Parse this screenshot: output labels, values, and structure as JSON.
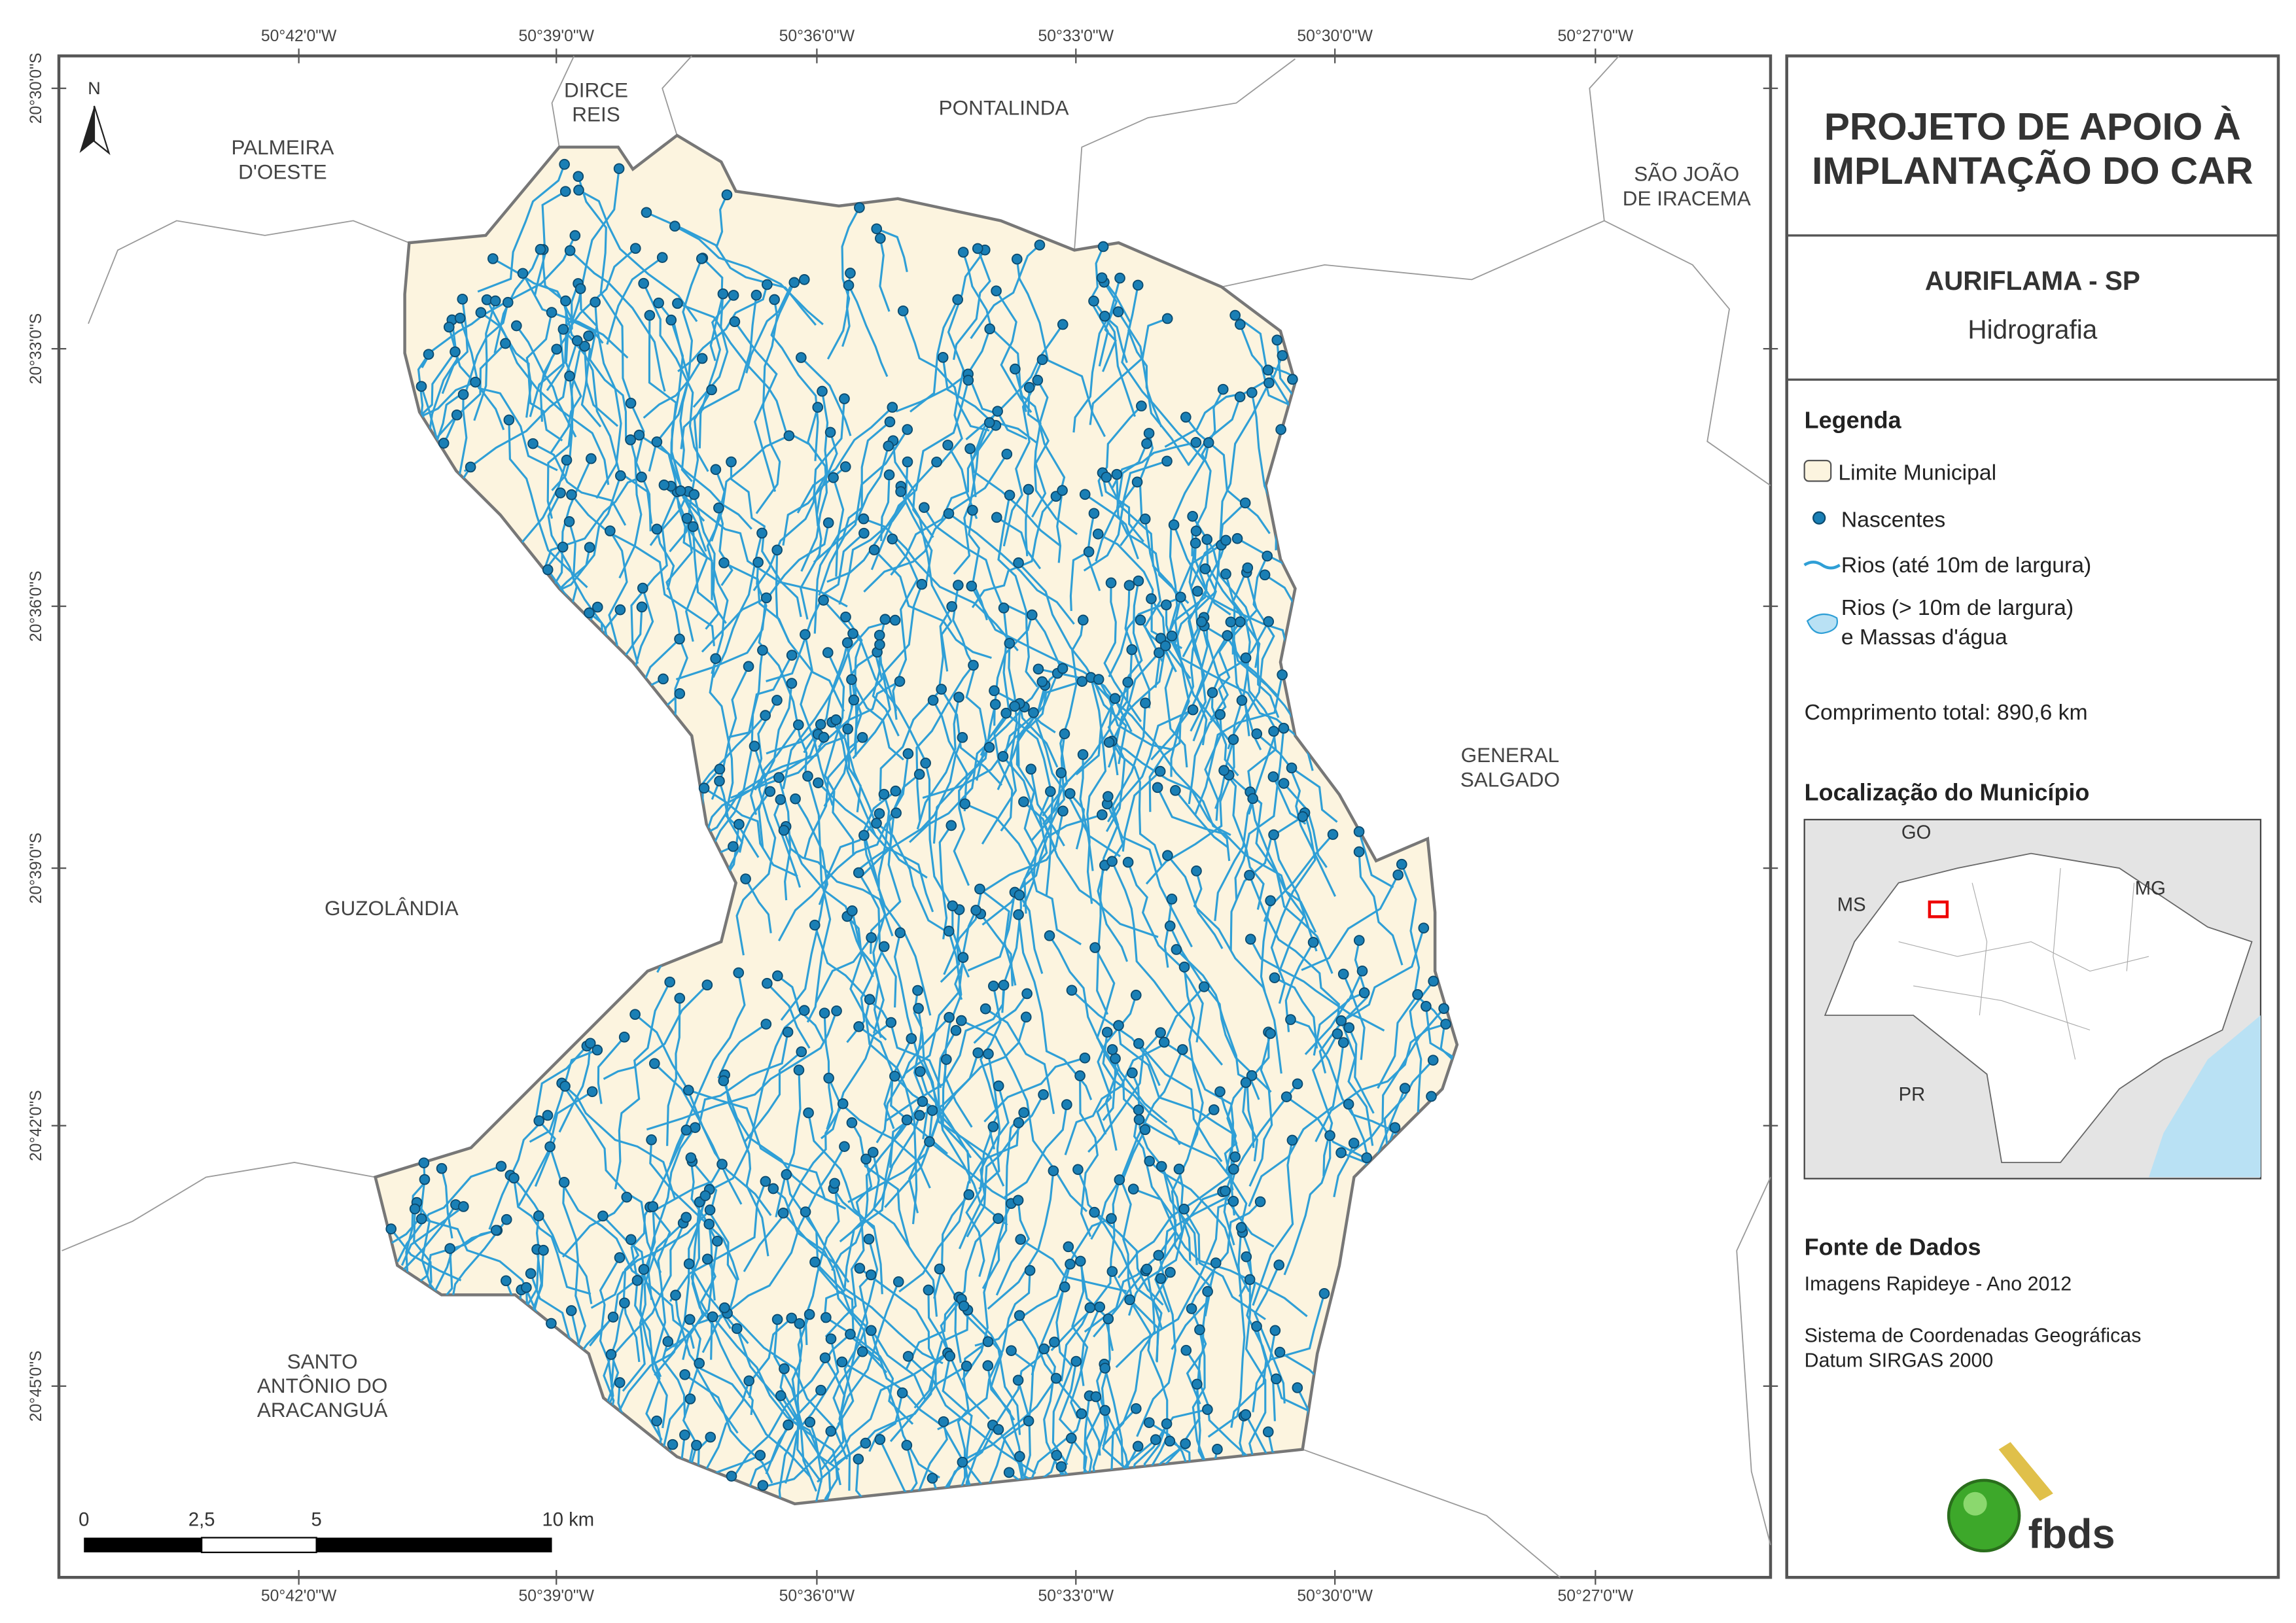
{
  "coordinates": {
    "top": [
      "50°42'0\"W",
      "50°39'0\"W",
      "50°36'0\"W",
      "50°33'0\"W",
      "50°30'0\"W",
      "50°27'0\"W"
    ],
    "bottom": [
      "50°42'0\"W",
      "50°39'0\"W",
      "50°36'0\"W",
      "50°33'0\"W",
      "50°30'0\"W",
      "50°27'0\"W"
    ],
    "left": [
      "20°30'0\"S",
      "20°33'0\"S",
      "20°36'0\"S",
      "20°39'0\"S",
      "20°42'0\"S",
      "20°45'0\"S"
    ]
  },
  "north": "N",
  "places": [
    [
      "PALMEIRA",
      "D'OESTE"
    ],
    [
      "DIRCE",
      "REIS"
    ],
    [
      "PONTALINDA"
    ],
    [
      "SÃO JOÃO",
      "DE IRACEMA"
    ],
    [
      "GENERAL",
      "SALGADO"
    ],
    [
      "GUZOLÂNDIA"
    ],
    [
      "SANTO",
      "ANTÔNIO DO",
      "ARACANGUÁ"
    ]
  ],
  "scale_bar": [
    "0",
    "2,5",
    "5",
    "10 km"
  ],
  "panel": {
    "title": [
      "PROJETO DE APOIO À",
      "IMPLANTAÇÃO DO CAR"
    ],
    "municipality": "AURIFLAMA - SP",
    "theme": "Hidrografia",
    "legend": {
      "heading": "Legenda",
      "items": [
        [
          "Limite Municipal"
        ],
        [
          "Nascentes"
        ],
        [
          "Rios (até 10m de largura)"
        ],
        [
          "Rios (> 10m de largura)",
          "e Massas d'água"
        ]
      ]
    },
    "total_length": "Comprimento total: 890,6 km",
    "location": {
      "heading": "Localização do Município",
      "labels": [
        "GO",
        "MS",
        "MG",
        "PR"
      ]
    },
    "source": {
      "heading": "Fonte de Dados",
      "lines": [
        "Imagens Rapideye - Ano 2012",
        "Sistema de Coordenadas Geográficas",
        "Datum SIRGAS 2000"
      ]
    },
    "logo": "fbds"
  }
}
